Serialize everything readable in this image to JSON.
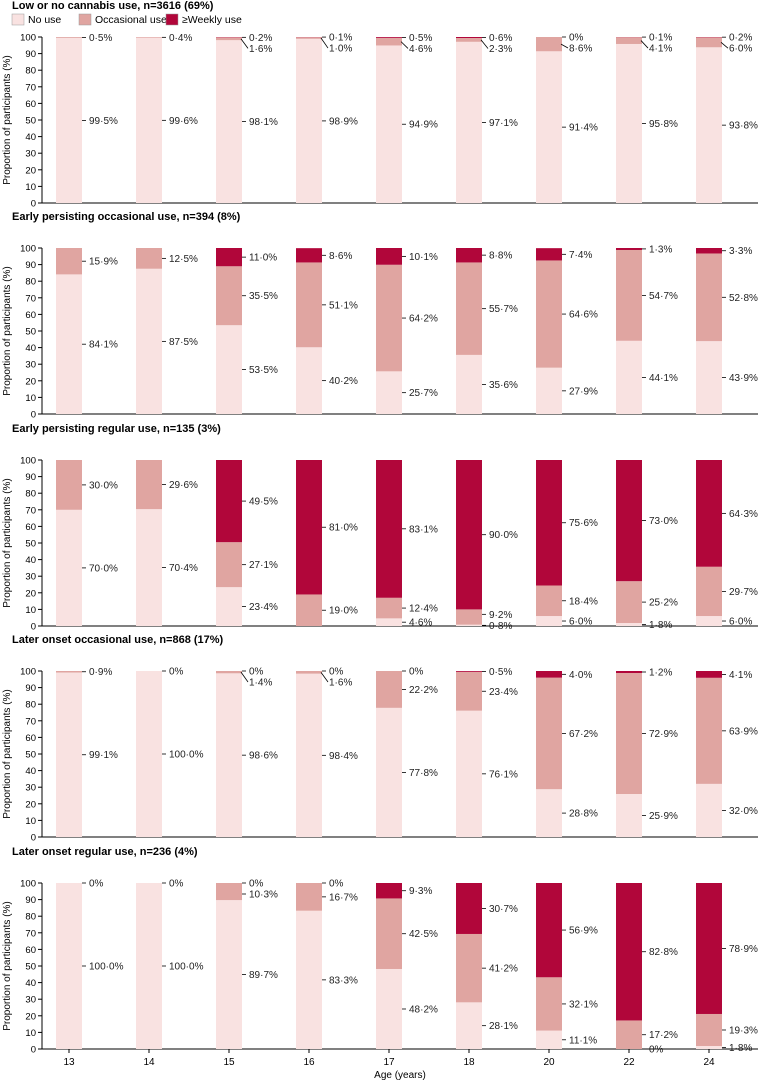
{
  "chart_data": {
    "type": "bar",
    "stacked": true,
    "legend": [
      {
        "name": "No use",
        "color": "#f9e2e1"
      },
      {
        "name": "Occasional use",
        "color": "#e0a5a1"
      },
      {
        "name": "≥Weekly use",
        "color": "#b1063a"
      }
    ],
    "categories": [
      "13",
      "14",
      "15",
      "16",
      "17",
      "18",
      "20",
      "22",
      "24"
    ],
    "xlabel": "Age (years)",
    "ylabel": "Proportion of participants (%)",
    "ylim": [
      0,
      100
    ],
    "yticks": [
      "0",
      "10",
      "20",
      "30",
      "40",
      "50",
      "60",
      "70",
      "80",
      "90",
      "100"
    ],
    "panels": [
      {
        "title": "Low or no cannabis use, n=3616 (69%)",
        "no_use": [
          99.5,
          99.6,
          98.1,
          98.9,
          94.9,
          97.1,
          91.4,
          95.8,
          93.8
        ],
        "occasional": [
          0.5,
          0.4,
          1.6,
          1.0,
          4.6,
          2.3,
          8.6,
          4.1,
          6.0
        ],
        "weekly": [
          0,
          0,
          0.2,
          0.1,
          0.5,
          0.6,
          0,
          0.1,
          0.2
        ],
        "labels": [
          [
            "99·5%",
            "0·5%",
            ""
          ],
          [
            "99·6%",
            "0·4%",
            ""
          ],
          [
            "98·1%",
            "1·6%",
            "0·2%"
          ],
          [
            "98·9%",
            "1·0%",
            "0·1%"
          ],
          [
            "94·9%",
            "4·6%",
            "0·5%"
          ],
          [
            "97·1%",
            "2·3%",
            "0·6%"
          ],
          [
            "91·4%",
            "8·6%",
            "0%"
          ],
          [
            "95·8%",
            "4·1%",
            "0·1%"
          ],
          [
            "93·8%",
            "6·0%",
            "0·2%"
          ]
        ]
      },
      {
        "title": "Early persisting occasional use, n=394 (8%)",
        "no_use": [
          84.1,
          87.5,
          53.5,
          40.2,
          25.7,
          35.6,
          27.9,
          44.1,
          43.9
        ],
        "occasional": [
          15.9,
          12.5,
          35.5,
          51.1,
          64.2,
          55.7,
          64.6,
          54.7,
          52.8
        ],
        "weekly": [
          0,
          0,
          11.0,
          8.6,
          10.1,
          8.8,
          7.4,
          1.3,
          3.3
        ],
        "labels": [
          [
            "84·1%",
            "15·9%",
            ""
          ],
          [
            "87·5%",
            "12·5%",
            ""
          ],
          [
            "53·5%",
            "35·5%",
            "11·0%"
          ],
          [
            "40·2%",
            "51·1%",
            "8·6%"
          ],
          [
            "25·7%",
            "64·2%",
            "10·1%"
          ],
          [
            "35·6%",
            "55·7%",
            "8·8%"
          ],
          [
            "27·9%",
            "64·6%",
            "7·4%"
          ],
          [
            "44·1%",
            "54·7%",
            "1·3%"
          ],
          [
            "43·9%",
            "52·8%",
            "3·3%"
          ]
        ]
      },
      {
        "title": "Early persisting regular use, n=135 (3%)",
        "no_use": [
          70.0,
          70.4,
          23.4,
          0,
          4.6,
          0.8,
          6.0,
          1.8,
          6.0
        ],
        "occasional": [
          30.0,
          29.6,
          27.1,
          19.0,
          12.4,
          9.2,
          18.4,
          25.2,
          29.7
        ],
        "weekly": [
          0,
          0,
          49.5,
          81.0,
          83.1,
          90.0,
          75.6,
          73.0,
          64.3
        ],
        "labels": [
          [
            "70·0%",
            "30·0%",
            ""
          ],
          [
            "70·4%",
            "29·6%",
            ""
          ],
          [
            "23·4%",
            "27·1%",
            "49·5%"
          ],
          [
            "",
            "19·0%",
            "81·0%"
          ],
          [
            "4·6%",
            "12·4%",
            "83·1%"
          ],
          [
            "0·8%",
            "9·2%",
            "90·0%"
          ],
          [
            "6·0%",
            "18·4%",
            "75·6%"
          ],
          [
            "1·8%",
            "25·2%",
            "73·0%"
          ],
          [
            "6·0%",
            "29·7%",
            "64·3%"
          ]
        ]
      },
      {
        "title": "Later onset occasional use, n=868 (17%)",
        "no_use": [
          99.1,
          100.0,
          98.6,
          98.4,
          77.8,
          76.1,
          28.8,
          25.9,
          32.0
        ],
        "occasional": [
          0.9,
          0,
          1.4,
          1.6,
          22.2,
          23.4,
          67.2,
          72.9,
          63.9
        ],
        "weekly": [
          0,
          0,
          0,
          0,
          0,
          0.5,
          4.0,
          1.2,
          4.1
        ],
        "labels": [
          [
            "99·1%",
            "0·9%",
            ""
          ],
          [
            "100·0%",
            "0%",
            ""
          ],
          [
            "98·6%",
            "1·4%",
            "0%"
          ],
          [
            "98·4%",
            "1·6%",
            "0%"
          ],
          [
            "77·8%",
            "22·2%",
            "0%"
          ],
          [
            "76·1%",
            "23·4%",
            "0·5%"
          ],
          [
            "28·8%",
            "67·2%",
            "4·0%"
          ],
          [
            "25·9%",
            "72·9%",
            "1·2%"
          ],
          [
            "32·0%",
            "63·9%",
            "4·1%"
          ]
        ]
      },
      {
        "title": "Later onset regular use, n=236 (4%)",
        "no_use": [
          100.0,
          100.0,
          89.7,
          83.3,
          48.2,
          28.1,
          11.1,
          0,
          1.8
        ],
        "occasional": [
          0,
          0,
          10.3,
          16.7,
          42.5,
          41.2,
          32.1,
          17.2,
          19.3
        ],
        "weekly": [
          0,
          0,
          0,
          0,
          9.3,
          30.7,
          56.9,
          82.8,
          78.9
        ],
        "labels": [
          [
            "100·0%",
            "0%",
            ""
          ],
          [
            "100·0%",
            "0%",
            ""
          ],
          [
            "89·7%",
            "10·3%",
            "0%"
          ],
          [
            "83·3%",
            "16·7%",
            "0%"
          ],
          [
            "48·2%",
            "42·5%",
            "9·3%"
          ],
          [
            "28·1%",
            "41·2%",
            "30·7%"
          ],
          [
            "11·1%",
            "32·1%",
            "56·9%"
          ],
          [
            "0%",
            "17·2%",
            "82·8%"
          ],
          [
            "1·8%",
            "19·3%",
            "78·9%"
          ]
        ]
      }
    ]
  }
}
